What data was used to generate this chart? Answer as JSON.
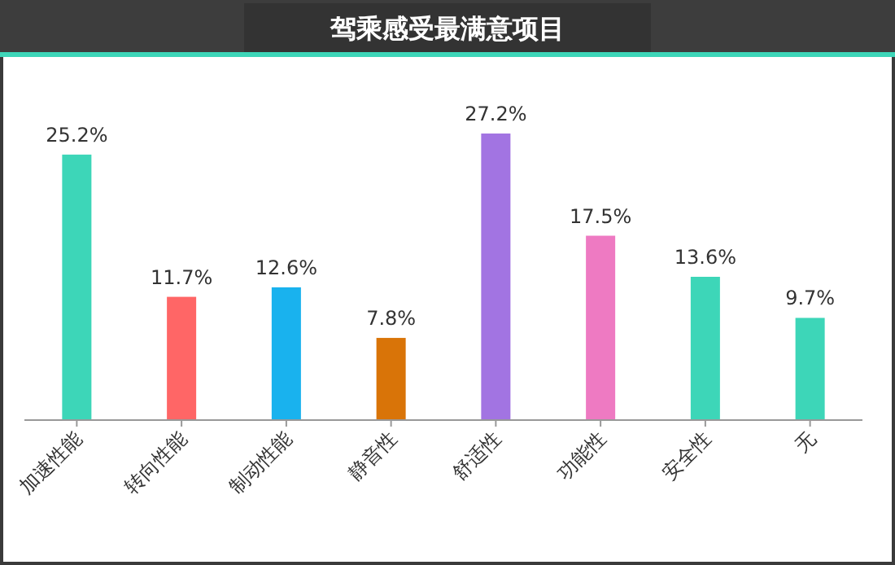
{
  "chart_data": {
    "type": "bar",
    "title": "驾乘感受最满意项目",
    "categories": [
      "加速性能",
      "转向性能",
      "制动性能",
      "静音性",
      "舒适性",
      "功能性",
      "安全性",
      "无"
    ],
    "values": [
      25.2,
      11.7,
      12.6,
      7.8,
      27.2,
      17.5,
      13.6,
      9.7
    ],
    "value_labels": [
      "25.2%",
      "11.7%",
      "12.6%",
      "7.8%",
      "27.2%",
      "17.5%",
      "13.6%",
      "9.7%"
    ],
    "colors": [
      "#3dd6b8",
      "#ff6666",
      "#19b2ee",
      "#d97408",
      "#a274e2",
      "#ee7ac2",
      "#3dd6b8",
      "#3dd6b8"
    ]
  }
}
